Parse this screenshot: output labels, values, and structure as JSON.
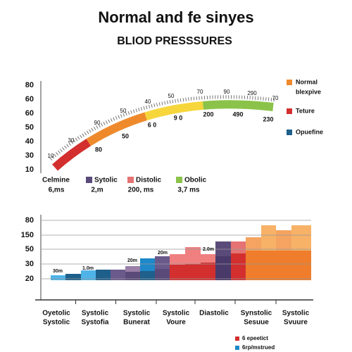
{
  "header": {
    "title": "Normal and fe sinyes",
    "subtitle": "BLIOD PRESSSURES"
  },
  "gauge": {
    "axis_labels": [
      80,
      60,
      60,
      50,
      40,
      30,
      10
    ],
    "arc_labels_upper": [
      10,
      30,
      90,
      50,
      40,
      50,
      70,
      90,
      290,
      70
    ],
    "arc_labels_lower": [
      80,
      50,
      "6 0",
      "9 0",
      200,
      490,
      230
    ],
    "legend": [
      [
        "Normal",
        "blexpive"
      ],
      [
        "Teture"
      ],
      [
        "Opuefine"
      ]
    ],
    "stats": [
      {
        "name": "Celmine",
        "value": "6,ms"
      },
      {
        "name": "Sytolic",
        "value": "2,m"
      },
      {
        "name": "Distolic",
        "value": "200, ms"
      },
      {
        "name": "Obolic",
        "value": "3,7 ms"
      }
    ]
  },
  "steps": {
    "axis_labels": [
      80,
      150,
      50,
      30,
      20
    ],
    "annotations": [
      "30m",
      "1.0m",
      "20m",
      "20m",
      "2.0m"
    ],
    "categories": [
      [
        "Oyetolic",
        "Systolic"
      ],
      [
        "Systolic",
        "Systofia"
      ],
      [
        "Systolic",
        "Bunerat"
      ],
      [
        "Systolic",
        "Voure"
      ],
      [
        "Diastolic"
      ],
      [
        "Synstolic",
        "Sesuue"
      ],
      [
        "Systolic",
        "Svuure"
      ]
    ],
    "legend": [
      "6 epeetict",
      "6rp/mstrued"
    ]
  }
}
